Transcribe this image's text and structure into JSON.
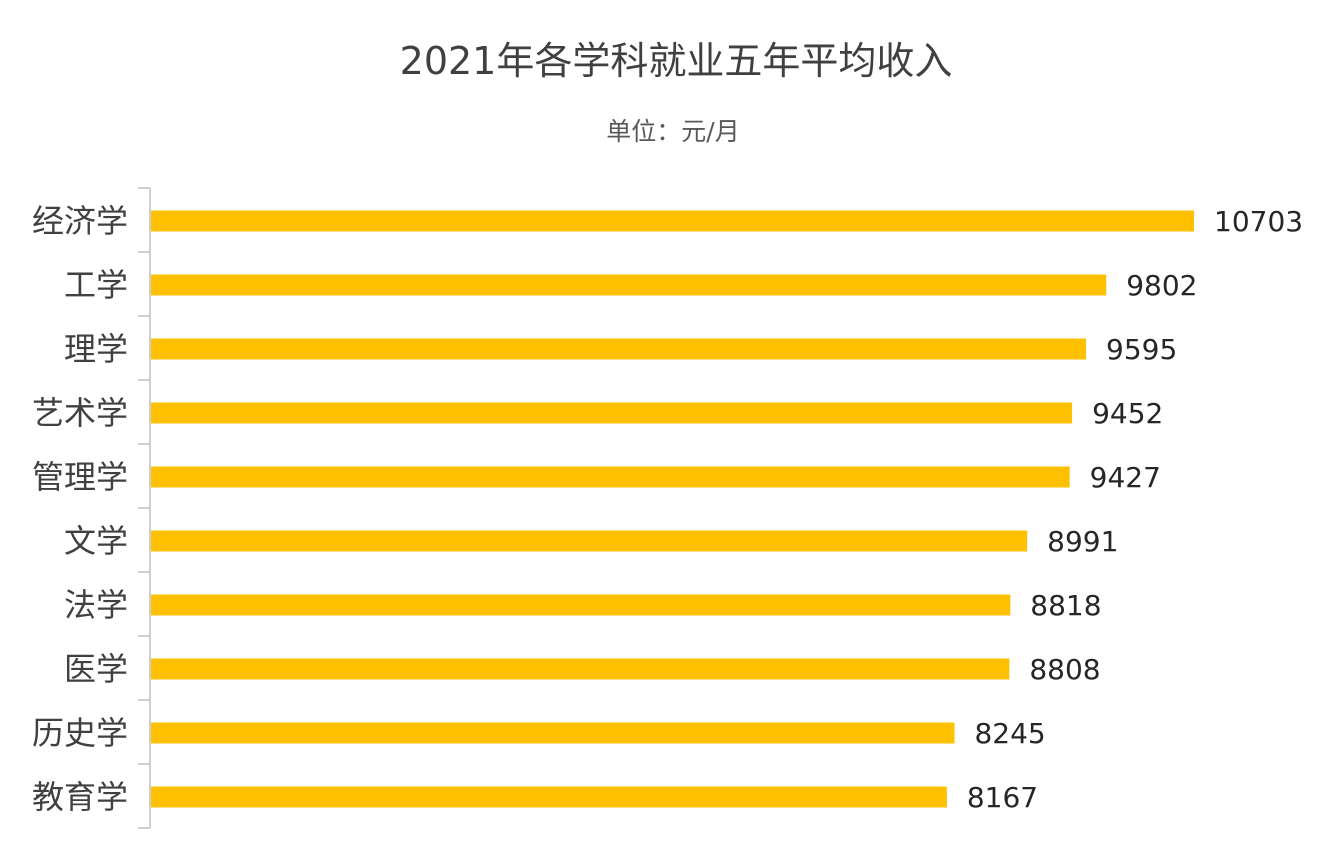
{
  "chart_data": {
    "type": "bar",
    "orientation": "horizontal",
    "title": "2021年各学科就业五年平均收入",
    "subtitle": "单位：元/月",
    "categories": [
      "经济学",
      "工学",
      "理学",
      "艺术学",
      "管理学",
      "文学",
      "法学",
      "医学",
      "历史学",
      "教育学"
    ],
    "values": [
      10703,
      9802,
      9595,
      9452,
      9427,
      8991,
      8818,
      8808,
      8245,
      8167
    ],
    "data_labels": true,
    "grid": false,
    "legend": "none",
    "bar_color": "#FFC000"
  }
}
